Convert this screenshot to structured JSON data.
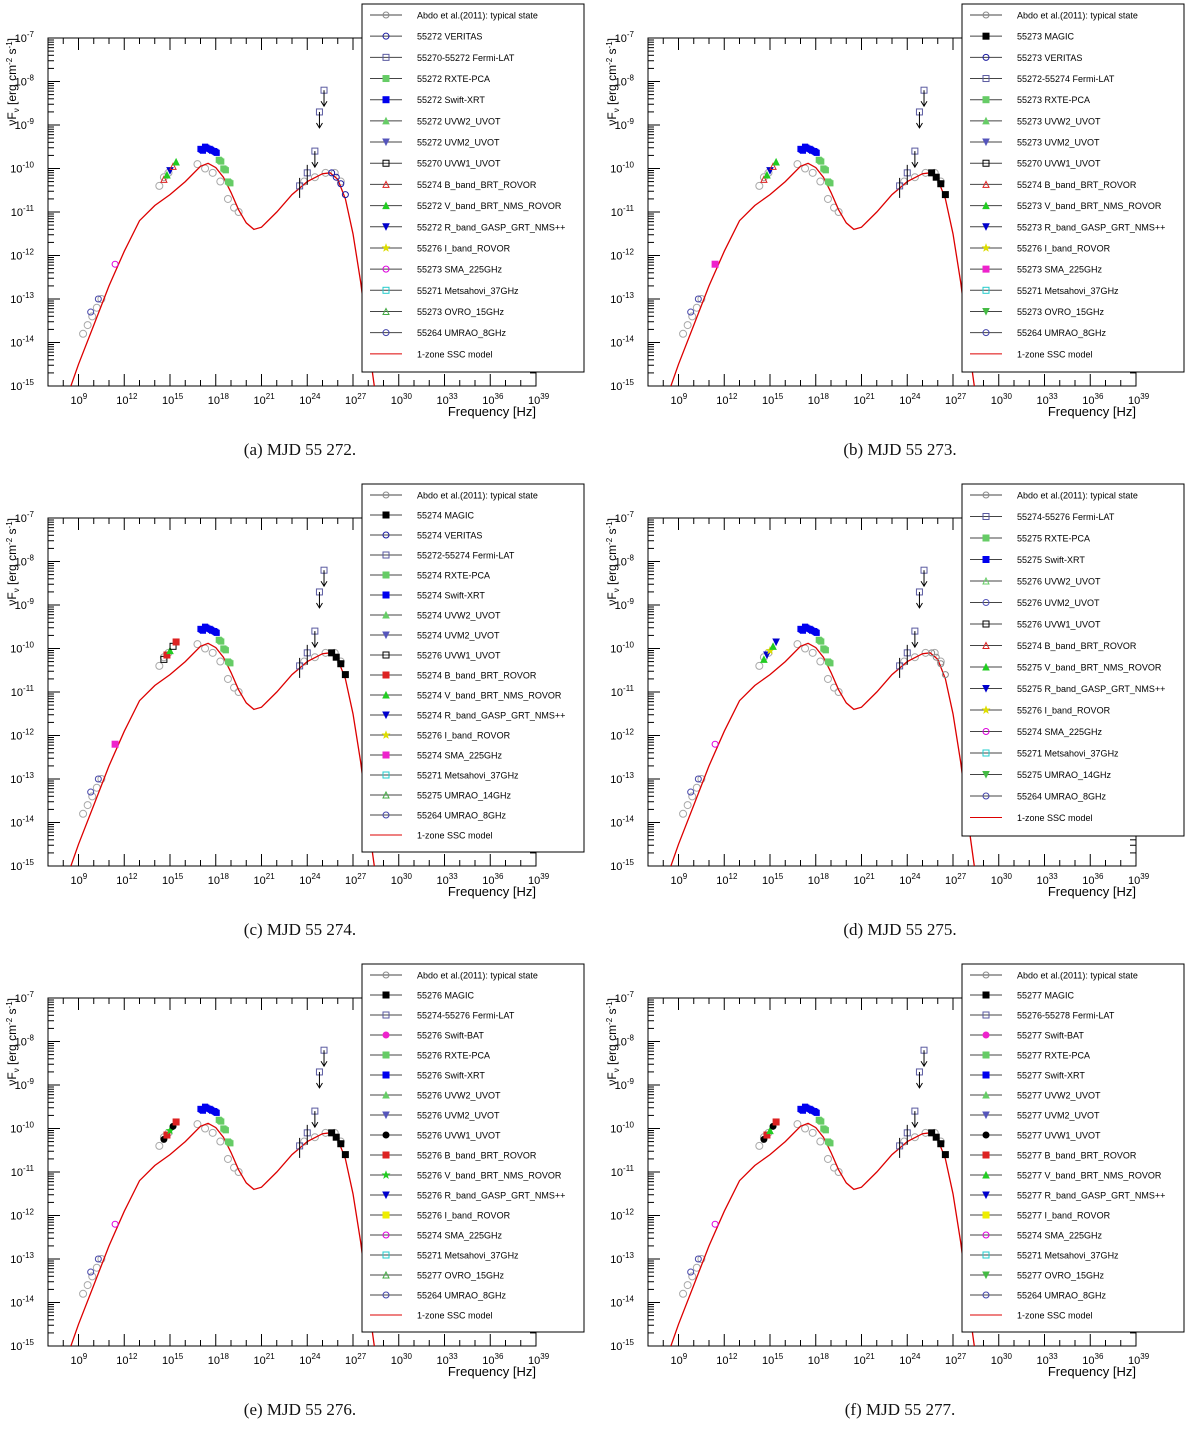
{
  "panels": [
    {
      "caption": "(a)  MJD 55 272.",
      "legend": [
        {
          "label": "Abdo et al.(2011): typical state",
          "marker": "circle-open",
          "color": "#8a8a8a"
        },
        {
          "label": "55272 VERITAS",
          "marker": "circle-open",
          "color": "#1a1aa0"
        },
        {
          "label": "55270-55272 Fermi-LAT",
          "marker": "square-open",
          "color": "#5a5aa0"
        },
        {
          "label": "55272 RXTE-PCA",
          "marker": "square",
          "color": "#66cc66"
        },
        {
          "label": "55272 Swift-XRT",
          "marker": "square",
          "color": "#0000ee"
        },
        {
          "label": "55272 UVW2_UVOT",
          "marker": "triangle",
          "color": "#66cc66"
        },
        {
          "label": "55272 UVM2_UVOT",
          "marker": "triangle-down",
          "color": "#5555bb"
        },
        {
          "label": "55270 UVW1_UVOT",
          "marker": "square-open",
          "color": "#000000"
        },
        {
          "label": "55274 B_band_BRT_ROVOR",
          "marker": "triangle-open",
          "color": "#dd2222"
        },
        {
          "label": "55272 V_band_BRT_NMS_ROVOR",
          "marker": "triangle",
          "color": "#22cc22"
        },
        {
          "label": "55272 R_band_GASP_GRT_NMS++",
          "marker": "triangle-down",
          "color": "#0000cc"
        },
        {
          "label": "55276 I_band_ROVOR",
          "marker": "star",
          "color": "#dddd00"
        },
        {
          "label": "55273 SMA_225GHz",
          "marker": "circle-open",
          "color": "#dd00dd"
        },
        {
          "label": "55271 Metsahovi_37GHz",
          "marker": "square-open",
          "color": "#22cccc"
        },
        {
          "label": "55273 OVRO_15GHz",
          "marker": "triangle-open",
          "color": "#44aa44"
        },
        {
          "label": "55264 UMRAO_8GHz",
          "marker": "circle-open",
          "color": "#4444aa"
        },
        {
          "label": "1-zone SSC model",
          "marker": "line",
          "color": "#dd0000"
        }
      ]
    },
    {
      "caption": "(b)  MJD 55 273.",
      "legend": [
        {
          "label": "Abdo et al.(2011): typical state",
          "marker": "circle-open",
          "color": "#8a8a8a"
        },
        {
          "label": "55273 MAGIC",
          "marker": "square",
          "color": "#000000"
        },
        {
          "label": "55273 VERITAS",
          "marker": "circle-open",
          "color": "#1a1aa0"
        },
        {
          "label": "55272-55274 Fermi-LAT",
          "marker": "square-open",
          "color": "#5a5aa0"
        },
        {
          "label": "55273 RXTE-PCA",
          "marker": "square",
          "color": "#66cc66"
        },
        {
          "label": "55273 UVW2_UVOT",
          "marker": "triangle",
          "color": "#66cc66"
        },
        {
          "label": "55273 UVM2_UVOT",
          "marker": "triangle-down",
          "color": "#5555bb"
        },
        {
          "label": "55270 UVW1_UVOT",
          "marker": "square-open",
          "color": "#000000"
        },
        {
          "label": "55274 B_band_BRT_ROVOR",
          "marker": "triangle-open",
          "color": "#dd2222"
        },
        {
          "label": "55273 V_band_BRT_NMS_ROVOR",
          "marker": "triangle",
          "color": "#22cc22"
        },
        {
          "label": "55273 R_band_GASP_GRT_NMS++",
          "marker": "triangle-down",
          "color": "#0000cc"
        },
        {
          "label": "55276 I_band_ROVOR",
          "marker": "star",
          "color": "#dddd00"
        },
        {
          "label": "55273 SMA_225GHz",
          "marker": "square",
          "color": "#ee22cc"
        },
        {
          "label": "55271 Metsahovi_37GHz",
          "marker": "square-open",
          "color": "#22cccc"
        },
        {
          "label": "55273 OVRO_15GHz",
          "marker": "triangle-down",
          "color": "#44bb44"
        },
        {
          "label": "55264 UMRAO_8GHz",
          "marker": "circle-open",
          "color": "#4444aa"
        },
        {
          "label": "1-zone SSC model",
          "marker": "line",
          "color": "#dd0000"
        }
      ]
    },
    {
      "caption": "(c)  MJD 55 274.",
      "legend": [
        {
          "label": "Abdo et al.(2011): typical state",
          "marker": "circle-open",
          "color": "#8a8a8a"
        },
        {
          "label": "55274 MAGIC",
          "marker": "square",
          "color": "#000000"
        },
        {
          "label": "55274 VERITAS",
          "marker": "circle-open",
          "color": "#1a1aa0"
        },
        {
          "label": "55272-55274 Fermi-LAT",
          "marker": "square-open",
          "color": "#5a5aa0"
        },
        {
          "label": "55274 RXTE-PCA",
          "marker": "square",
          "color": "#66cc66"
        },
        {
          "label": "55274 Swift-XRT",
          "marker": "square",
          "color": "#0000ee"
        },
        {
          "label": "55274 UVW2_UVOT",
          "marker": "triangle",
          "color": "#66cc66"
        },
        {
          "label": "55274 UVM2_UVOT",
          "marker": "triangle-down",
          "color": "#5555bb"
        },
        {
          "label": "55276 UVW1_UVOT",
          "marker": "square-open",
          "color": "#000000"
        },
        {
          "label": "55274 B_band_BRT_ROVOR",
          "marker": "square",
          "color": "#dd2222"
        },
        {
          "label": "55274 V_band_BRT_NMS_ROVOR",
          "marker": "triangle",
          "color": "#22cc22"
        },
        {
          "label": "55274 R_band_GASP_GRT_NMS++",
          "marker": "triangle-down",
          "color": "#0000cc"
        },
        {
          "label": "55276 I_band_ROVOR",
          "marker": "star",
          "color": "#dddd00"
        },
        {
          "label": "55274 SMA_225GHz",
          "marker": "square",
          "color": "#ee22cc"
        },
        {
          "label": "55271 Metsahovi_37GHz",
          "marker": "square-open",
          "color": "#22cccc"
        },
        {
          "label": "55275 UMRAO_14GHz",
          "marker": "triangle-open",
          "color": "#44aa44"
        },
        {
          "label": "55264 UMRAO_8GHz",
          "marker": "circle-open",
          "color": "#4444aa"
        },
        {
          "label": "1-zone SSC model",
          "marker": "line",
          "color": "#dd0000"
        }
      ]
    },
    {
      "caption": "(d)  MJD 55 275.",
      "legend": [
        {
          "label": "Abdo et al.(2011): typical state",
          "marker": "circle-open",
          "color": "#8a8a8a"
        },
        {
          "label": "55274-55276 Fermi-LAT",
          "marker": "square-open",
          "color": "#5a5aa0"
        },
        {
          "label": "55275 RXTE-PCA",
          "marker": "square",
          "color": "#66cc66"
        },
        {
          "label": "55275 Swift-XRT",
          "marker": "square",
          "color": "#0000ee"
        },
        {
          "label": "55276 UVW2_UVOT",
          "marker": "triangle-open",
          "color": "#66cc66"
        },
        {
          "label": "55276 UVM2_UVOT",
          "marker": "circle-open",
          "color": "#5555bb"
        },
        {
          "label": "55276 UVW1_UVOT",
          "marker": "square-open",
          "color": "#000000"
        },
        {
          "label": "55274 B_band_BRT_ROVOR",
          "marker": "triangle-open",
          "color": "#dd2222"
        },
        {
          "label": "55275 V_band_BRT_NMS_ROVOR",
          "marker": "triangle",
          "color": "#22cc22"
        },
        {
          "label": "55275 R_band_GASP_GRT_NMS++",
          "marker": "triangle-down",
          "color": "#0000cc"
        },
        {
          "label": "55276 I_band_ROVOR",
          "marker": "star",
          "color": "#dddd00"
        },
        {
          "label": "55274 SMA_225GHz",
          "marker": "circle-open",
          "color": "#dd00dd"
        },
        {
          "label": "55271 Metsahovi_37GHz",
          "marker": "square-open",
          "color": "#22cccc"
        },
        {
          "label": "55275 UMRAO_14GHz",
          "marker": "triangle-down",
          "color": "#44bb44"
        },
        {
          "label": "55264 UMRAO_8GHz",
          "marker": "circle-open",
          "color": "#4444aa"
        },
        {
          "label": "1-zone SSC model",
          "marker": "line",
          "color": "#dd0000"
        }
      ]
    },
    {
      "caption": "(e)  MJD 55 276.",
      "legend": [
        {
          "label": "Abdo et al.(2011): typical state",
          "marker": "circle-open",
          "color": "#8a8a8a"
        },
        {
          "label": "55276 MAGIC",
          "marker": "square",
          "color": "#000000"
        },
        {
          "label": "55274-55276 Fermi-LAT",
          "marker": "square-open",
          "color": "#5a5aa0"
        },
        {
          "label": "55276 Swift-BAT",
          "marker": "circle",
          "color": "#ee22cc"
        },
        {
          "label": "55276 RXTE-PCA",
          "marker": "square",
          "color": "#66cc66"
        },
        {
          "label": "55276 Swift-XRT",
          "marker": "square",
          "color": "#0000ee"
        },
        {
          "label": "55276 UVW2_UVOT",
          "marker": "triangle",
          "color": "#66cc66"
        },
        {
          "label": "55276 UVM2_UVOT",
          "marker": "triangle-down",
          "color": "#5555bb"
        },
        {
          "label": "55276 UVW1_UVOT",
          "marker": "circle",
          "color": "#000000"
        },
        {
          "label": "55276 B_band_BRT_ROVOR",
          "marker": "square",
          "color": "#dd2222"
        },
        {
          "label": "55276 V_band_BRT_NMS_ROVOR",
          "marker": "star",
          "color": "#22cc22"
        },
        {
          "label": "55276 R_band_GASP_GRT_NMS++",
          "marker": "triangle-down",
          "color": "#0000cc"
        },
        {
          "label": "55276 I_band_ROVOR",
          "marker": "square",
          "color": "#eeee00"
        },
        {
          "label": "55274 SMA_225GHz",
          "marker": "circle-open",
          "color": "#dd00dd"
        },
        {
          "label": "55271 Metsahovi_37GHz",
          "marker": "square-open",
          "color": "#22cccc"
        },
        {
          "label": "55277 OVRO_15GHz",
          "marker": "triangle-open",
          "color": "#44aa44"
        },
        {
          "label": "55264 UMRAO_8GHz",
          "marker": "circle-open",
          "color": "#4444aa"
        },
        {
          "label": "1-zone SSC model",
          "marker": "line",
          "color": "#dd0000"
        }
      ]
    },
    {
      "caption": "(f)  MJD 55 277.",
      "legend": [
        {
          "label": "Abdo et al.(2011): typical state",
          "marker": "circle-open",
          "color": "#8a8a8a"
        },
        {
          "label": "55277 MAGIC",
          "marker": "square",
          "color": "#000000"
        },
        {
          "label": "55276-55278 Fermi-LAT",
          "marker": "square-open",
          "color": "#5a5aa0"
        },
        {
          "label": "55277 Swift-BAT",
          "marker": "circle",
          "color": "#ee22cc"
        },
        {
          "label": "55277 RXTE-PCA",
          "marker": "square",
          "color": "#66cc66"
        },
        {
          "label": "55277 Swift-XRT",
          "marker": "square",
          "color": "#0000ee"
        },
        {
          "label": "55277 UVW2_UVOT",
          "marker": "triangle",
          "color": "#66cc66"
        },
        {
          "label": "55277 UVM2_UVOT",
          "marker": "triangle-down",
          "color": "#5555bb"
        },
        {
          "label": "55277 UVW1_UVOT",
          "marker": "circle",
          "color": "#000000"
        },
        {
          "label": "55277 B_band_BRT_ROVOR",
          "marker": "square",
          "color": "#dd2222"
        },
        {
          "label": "55277 V_band_BRT_NMS_ROVOR",
          "marker": "triangle",
          "color": "#22cc22"
        },
        {
          "label": "55277 R_band_GASP_GRT_NMS++",
          "marker": "triangle-down",
          "color": "#0000cc"
        },
        {
          "label": "55277 I_band_ROVOR",
          "marker": "square",
          "color": "#eeee00"
        },
        {
          "label": "55274 SMA_225GHz",
          "marker": "circle-open",
          "color": "#dd00dd"
        },
        {
          "label": "55271 Metsahovi_37GHz",
          "marker": "square-open",
          "color": "#22cccc"
        },
        {
          "label": "55277 OVRO_15GHz",
          "marker": "triangle-down",
          "color": "#44bb44"
        },
        {
          "label": "55264 UMRAO_8GHz",
          "marker": "circle-open",
          "color": "#4444aa"
        },
        {
          "label": "1-zone SSC model",
          "marker": "line",
          "color": "#dd0000"
        }
      ]
    }
  ],
  "chart_data": {
    "type": "scatter",
    "xlabel": "Frequency [Hz]",
    "ylabel": "νF",
    "ylabel_sub": "ν",
    "ylabel_units": "[erg cm",
    "ylabel_exp1": "-2",
    "ylabel_mid": " s",
    "ylabel_exp2": "-1",
    "ylabel_end": "]",
    "x_log": true,
    "y_log": true,
    "xlim_exp": [
      7,
      39
    ],
    "ylim_exp": [
      -15,
      -7
    ],
    "x_ticks": [
      {
        "exp": 9,
        "base": "10",
        "sup": "9"
      },
      {
        "exp": 12,
        "base": "10",
        "sup": "12"
      },
      {
        "exp": 15,
        "base": "10",
        "sup": "15"
      },
      {
        "exp": 18,
        "base": "10",
        "sup": "18"
      },
      {
        "exp": 21,
        "base": "10",
        "sup": "21"
      },
      {
        "exp": 24,
        "base": "10",
        "sup": "24"
      },
      {
        "exp": 27,
        "base": "10",
        "sup": "27"
      },
      {
        "exp": 30,
        "base": "10",
        "sup": "30"
      },
      {
        "exp": 33,
        "base": "10",
        "sup": "33"
      },
      {
        "exp": 36,
        "base": "10",
        "sup": "36"
      },
      {
        "exp": 39,
        "base": "10",
        "sup": "39"
      }
    ],
    "y_ticks": [
      {
        "exp": -7,
        "base": "10",
        "sup": "-7"
      },
      {
        "exp": -8,
        "base": "10",
        "sup": "-8"
      },
      {
        "exp": -9,
        "base": "10",
        "sup": "-9"
      },
      {
        "exp": -10,
        "base": "10",
        "sup": "-10"
      },
      {
        "exp": -11,
        "base": "10",
        "sup": "-11"
      },
      {
        "exp": -12,
        "base": "10",
        "sup": "-12"
      },
      {
        "exp": -13,
        "base": "10",
        "sup": "-13"
      },
      {
        "exp": -14,
        "base": "10",
        "sup": "-14"
      },
      {
        "exp": -15,
        "base": "10",
        "sup": "-15"
      }
    ],
    "ssc_model_log": [
      [
        8.5,
        -15.0
      ],
      [
        9.0,
        -14.5
      ],
      [
        10.0,
        -13.6
      ],
      [
        11.0,
        -12.7
      ],
      [
        12.0,
        -11.9
      ],
      [
        13.0,
        -11.2
      ],
      [
        14.0,
        -10.85
      ],
      [
        15.0,
        -10.6
      ],
      [
        16.0,
        -10.3
      ],
      [
        17.0,
        -9.95
      ],
      [
        17.5,
        -9.88
      ],
      [
        18.0,
        -9.98
      ],
      [
        18.5,
        -10.2
      ],
      [
        19.0,
        -10.55
      ],
      [
        19.5,
        -10.95
      ],
      [
        20.0,
        -11.25
      ],
      [
        20.5,
        -11.4
      ],
      [
        21.0,
        -11.35
      ],
      [
        22.0,
        -11.0
      ],
      [
        23.0,
        -10.6
      ],
      [
        24.0,
        -10.3
      ],
      [
        25.0,
        -10.12
      ],
      [
        25.5,
        -10.1
      ],
      [
        26.0,
        -10.25
      ],
      [
        26.5,
        -10.7
      ],
      [
        27.0,
        -11.5
      ],
      [
        27.5,
        -12.6
      ],
      [
        28.0,
        -14.0
      ],
      [
        28.4,
        -15.0
      ]
    ],
    "typical_state_log": [
      [
        9.3,
        -13.8
      ],
      [
        9.6,
        -13.6
      ],
      [
        9.9,
        -13.4
      ],
      [
        10.2,
        -13.2
      ],
      [
        10.5,
        -13.0
      ],
      [
        14.3,
        -10.4
      ],
      [
        14.6,
        -10.2
      ],
      [
        14.9,
        -10.1
      ],
      [
        16.8,
        -9.9
      ],
      [
        17.3,
        -10.0
      ],
      [
        17.8,
        -10.1
      ],
      [
        18.3,
        -10.3
      ],
      [
        18.8,
        -10.7
      ],
      [
        19.2,
        -10.9
      ],
      [
        19.5,
        -11.0
      ],
      [
        23.8,
        -10.3
      ],
      [
        24.5,
        -10.2
      ],
      [
        25.2,
        -10.1
      ],
      [
        25.8,
        -10.1
      ],
      [
        26.2,
        -10.3
      ]
    ],
    "radio_log": [
      [
        9.8,
        -13.3
      ],
      [
        10.3,
        -13.0
      ],
      [
        11.4,
        -12.2
      ]
    ],
    "optical_log": [
      [
        14.6,
        -10.25
      ],
      [
        14.8,
        -10.15
      ],
      [
        15.0,
        -10.05
      ],
      [
        15.2,
        -9.95
      ],
      [
        15.4,
        -9.85
      ]
    ],
    "xray_log": [
      [
        17.0,
        -9.55
      ],
      [
        17.3,
        -9.5
      ],
      [
        17.6,
        -9.55
      ],
      [
        17.9,
        -9.6
      ],
      [
        18.2,
        -9.8
      ],
      [
        18.5,
        -10.0
      ],
      [
        18.8,
        -10.3
      ]
    ],
    "fermi_log": [
      [
        23.5,
        -10.4
      ],
      [
        24.0,
        -10.1
      ],
      [
        24.5,
        -9.6
      ],
      [
        24.8,
        -8.7
      ],
      [
        25.1,
        -8.2
      ]
    ],
    "tev_log": [
      [
        25.6,
        -10.1
      ],
      [
        25.9,
        -10.2
      ],
      [
        26.2,
        -10.35
      ],
      [
        26.5,
        -10.6
      ]
    ]
  }
}
